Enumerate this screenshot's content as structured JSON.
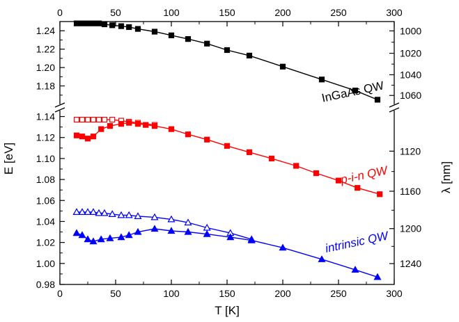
{
  "chart_data": {
    "type": "line",
    "xlabel": "T [K]",
    "ylabel": "E [eV]",
    "y2label": "λ [nm]",
    "xlim": [
      0,
      300
    ],
    "x_ticks": [
      "0",
      "50",
      "100",
      "150",
      "200",
      "250",
      "300"
    ],
    "y_axis_break": true,
    "y_upper_range": [
      1.16,
      1.25
    ],
    "y_upper_ticks": [
      "1.18",
      "1.20",
      "1.22",
      "1.24"
    ],
    "y_lower_range": [
      0.98,
      1.145
    ],
    "y_lower_ticks": [
      "0.98",
      "1.00",
      "1.02",
      "1.04",
      "1.06",
      "1.08",
      "1.10",
      "1.12",
      "1.14"
    ],
    "y2_ticks_upper": [
      "1000",
      "1020",
      "1040",
      "1060"
    ],
    "y2_ticks_lower": [
      "1120",
      "1160",
      "1200",
      "1240"
    ],
    "grid": false,
    "series": [
      {
        "name": "InGaAs QW",
        "color": "#000000",
        "marker": "square-filled",
        "x": [
          15,
          20,
          25,
          30,
          35,
          40,
          47,
          55,
          62,
          70,
          85,
          100,
          115,
          132,
          150,
          170,
          200,
          235,
          265,
          285
        ],
        "values": [
          1.248,
          1.248,
          1.248,
          1.248,
          1.248,
          1.247,
          1.246,
          1.245,
          1.244,
          1.242,
          1.239,
          1.235,
          1.231,
          1.226,
          1.219,
          1.213,
          1.201,
          1.187,
          1.175,
          1.165
        ]
      },
      {
        "name": "p-i-n QW",
        "color": "#ff0000",
        "marker": "square-open",
        "x": [
          15,
          20,
          25,
          30,
          35,
          40,
          47,
          55,
          62,
          70,
          85
        ],
        "values": [
          1.137,
          1.137,
          1.137,
          1.137,
          1.137,
          1.137,
          1.137,
          1.136,
          1.135,
          1.134,
          1.132
        ]
      },
      {
        "name": "p-i-n QW",
        "color": "#ff0000",
        "marker": "square-filled",
        "x": [
          15,
          20,
          25,
          30,
          37,
          45,
          55,
          62,
          70,
          77,
          85,
          100,
          115,
          132,
          150,
          170,
          190,
          212,
          230,
          250,
          267,
          287
        ],
        "values": [
          1.122,
          1.121,
          1.119,
          1.121,
          1.128,
          1.131,
          1.133,
          1.134,
          1.133,
          1.132,
          1.131,
          1.128,
          1.123,
          1.118,
          1.112,
          1.106,
          1.1,
          1.093,
          1.086,
          1.079,
          1.072,
          1.066
        ]
      },
      {
        "name": "intrinsic QW",
        "color": "#0000ff",
        "marker": "triangle-open",
        "x": [
          15,
          20,
          25,
          30,
          35,
          40,
          47,
          55,
          62,
          70,
          85,
          100,
          115,
          132,
          153,
          172
        ],
        "values": [
          1.049,
          1.049,
          1.049,
          1.049,
          1.048,
          1.048,
          1.047,
          1.046,
          1.046,
          1.045,
          1.044,
          1.042,
          1.039,
          1.034,
          1.029,
          1.023
        ]
      },
      {
        "name": "intrinsic QW",
        "color": "#0000ff",
        "marker": "triangle-filled",
        "x": [
          15,
          20,
          25,
          30,
          37,
          45,
          55,
          62,
          70,
          85,
          100,
          115,
          132,
          153,
          172,
          200,
          235,
          265,
          285
        ],
        "values": [
          1.029,
          1.027,
          1.023,
          1.021,
          1.023,
          1.024,
          1.025,
          1.027,
          1.03,
          1.033,
          1.031,
          1.03,
          1.028,
          1.025,
          1.022,
          1.015,
          1.004,
          0.994,
          0.987
        ]
      }
    ],
    "labels": {
      "ingaas": "InGaAs QW",
      "pin": "p-i-n QW",
      "intrinsic": "intrinsic QW"
    }
  }
}
